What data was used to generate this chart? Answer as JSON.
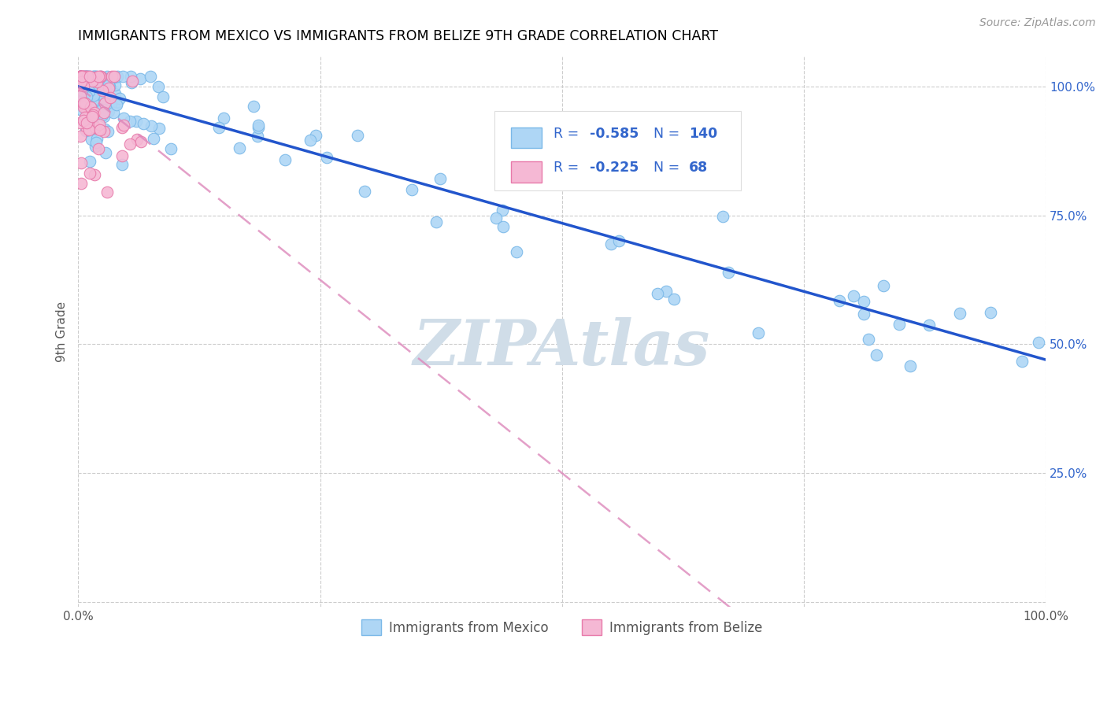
{
  "title": "IMMIGRANTS FROM MEXICO VS IMMIGRANTS FROM BELIZE 9TH GRADE CORRELATION CHART",
  "source": "Source: ZipAtlas.com",
  "ylabel": "9th Grade",
  "x_min": 0.0,
  "x_max": 1.0,
  "y_min": 0.0,
  "y_max": 1.0,
  "mexico_color": "#aed6f5",
  "mexico_edge": "#7ab8e8",
  "belize_color": "#f5b8d4",
  "belize_edge": "#e87aaa",
  "mexico_R": "-0.585",
  "mexico_N": "140",
  "belize_R": "-0.225",
  "belize_N": "68",
  "legend_color": "#3366cc",
  "mexico_trend_color": "#2255cc",
  "belize_trend_color": "#dd88bb",
  "watermark_color": "#d0dde8",
  "grid_color": "#cccccc",
  "tick_color": "#3366cc",
  "ylabel_color": "#555555"
}
